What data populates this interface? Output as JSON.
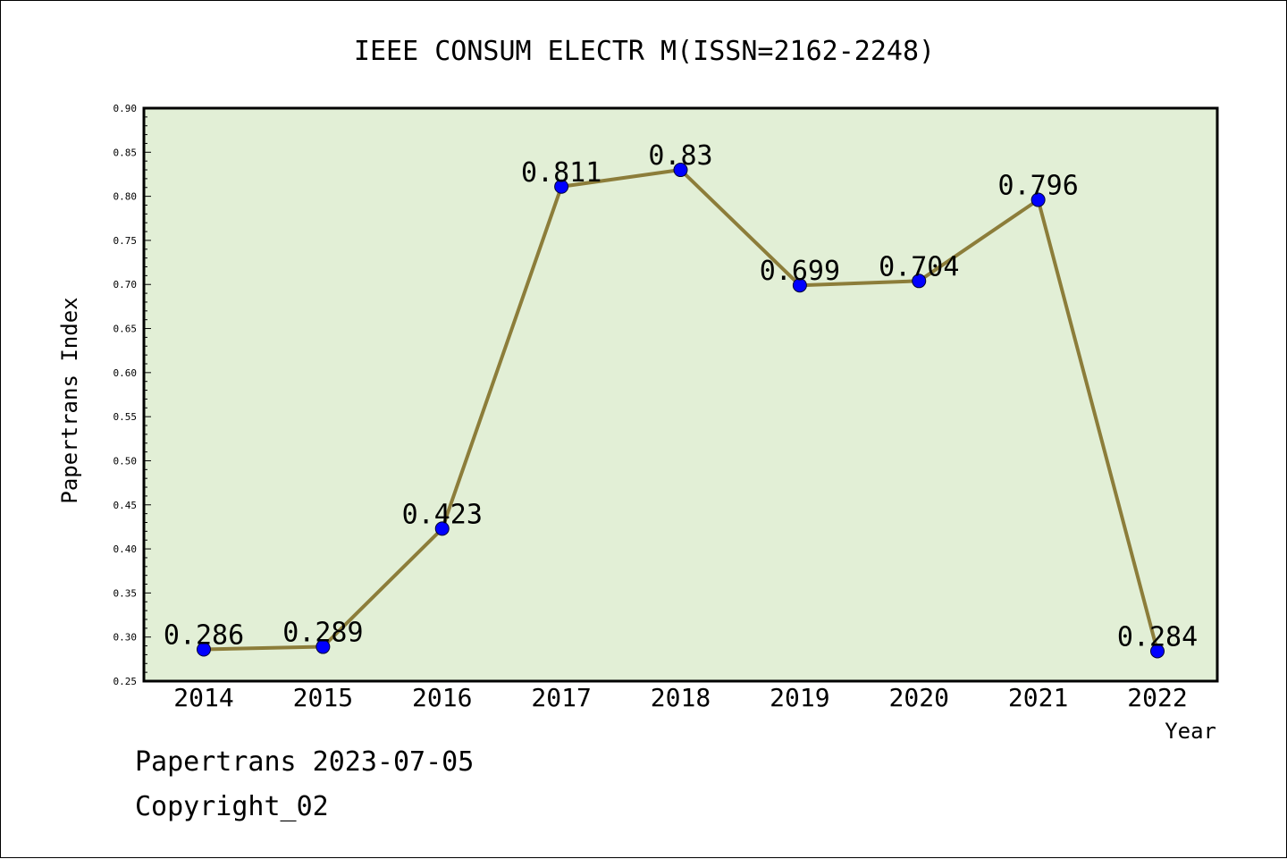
{
  "chart_data": {
    "type": "line",
    "title": "IEEE CONSUM ELECTR M(ISSN=2162-2248)",
    "xlabel": "Year",
    "ylabel": "Papertrans Index",
    "categories": [
      "2014",
      "2015",
      "2016",
      "2017",
      "2018",
      "2019",
      "2020",
      "2021",
      "2022"
    ],
    "values": [
      0.286,
      0.289,
      0.423,
      0.811,
      0.83,
      0.699,
      0.704,
      0.796,
      0.284
    ],
    "data_labels": [
      "0.286",
      "0.289",
      "0.423",
      "0.811",
      "0.83",
      "0.699",
      "0.704",
      "0.796",
      "0.284"
    ],
    "ylim": [
      0.25,
      0.9
    ],
    "yticks": [
      "0.25",
      "0.30",
      "0.35",
      "0.40",
      "0.45",
      "0.50",
      "0.55",
      "0.60",
      "0.65",
      "0.70",
      "0.75",
      "0.80",
      "0.85",
      "0.90"
    ],
    "grid": false,
    "colors": {
      "plot_background": "#e2efd6",
      "line": "#8c7d3a",
      "marker": "#0000ff"
    }
  },
  "footer": {
    "date_line": "Papertrans 2023-07-05",
    "copyright": "Copyright_02"
  }
}
